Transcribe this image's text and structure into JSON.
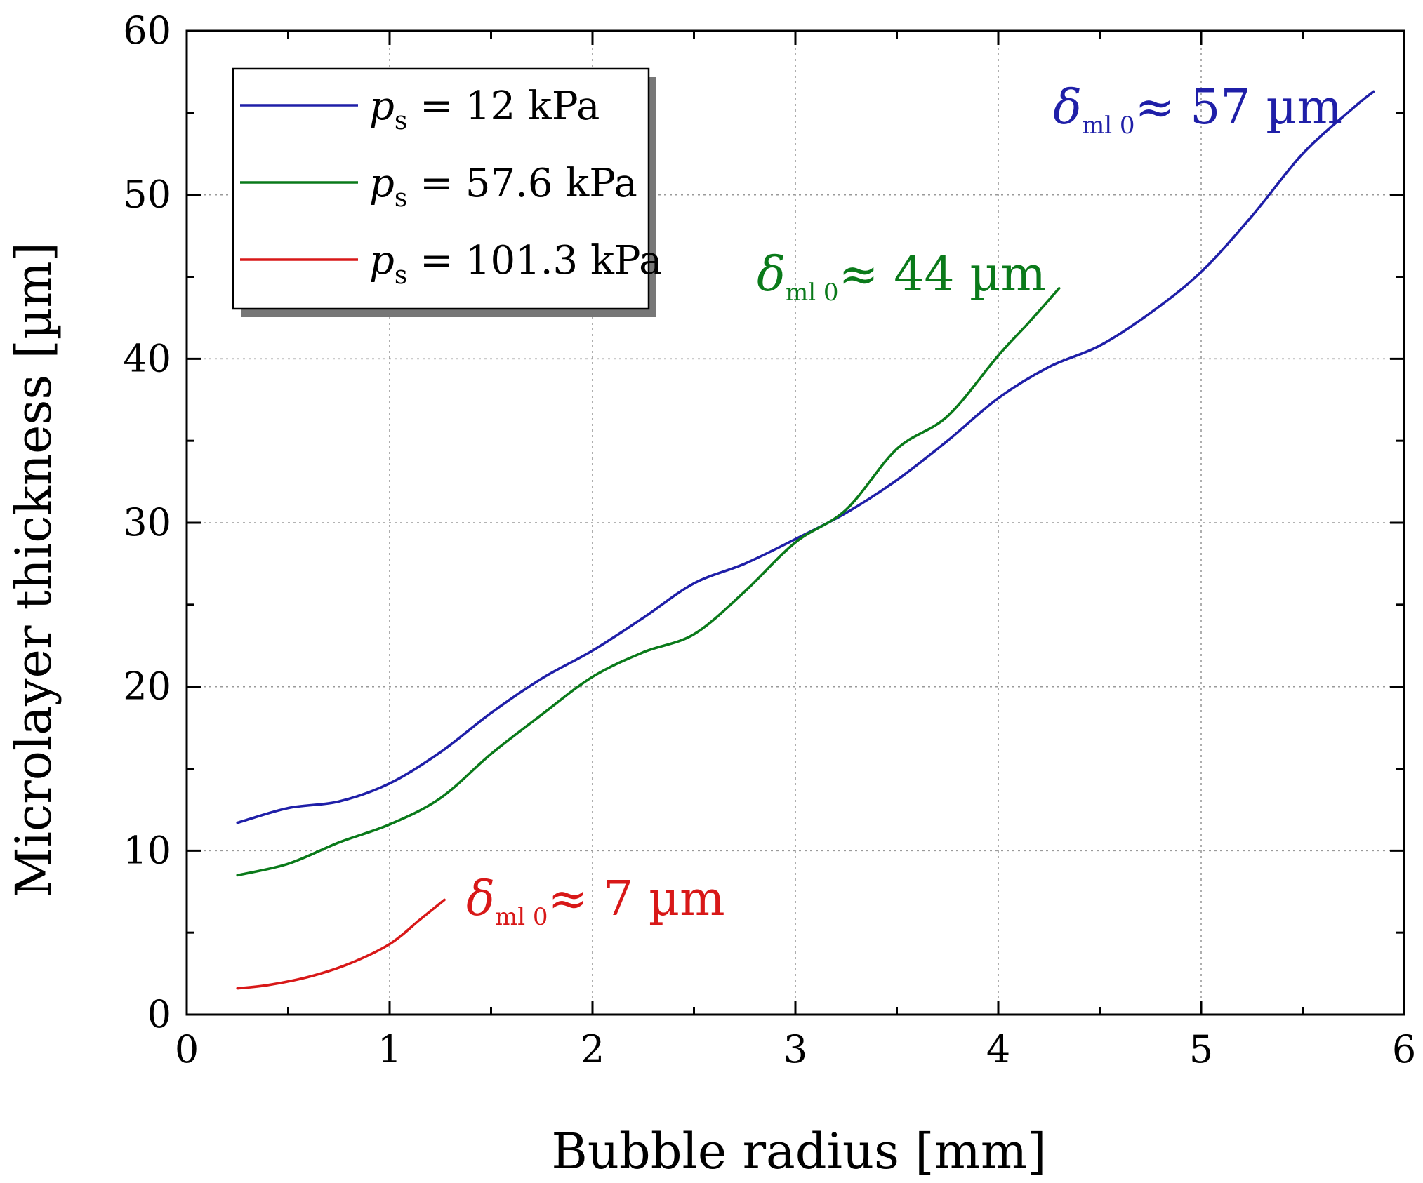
{
  "chart_data": {
    "type": "line",
    "title": "",
    "xlabel": "Bubble radius [mm]",
    "ylabel": "Microlayer thickness [µm]",
    "xlim": [
      0,
      6
    ],
    "ylim": [
      0,
      60
    ],
    "x_ticks": [
      0,
      1,
      2,
      3,
      4,
      5,
      6
    ],
    "y_ticks": [
      0,
      10,
      20,
      30,
      40,
      50,
      60
    ],
    "x_tick_labels": [
      "0",
      "1",
      "2",
      "3",
      "4",
      "5",
      "6"
    ],
    "y_tick_labels": [
      "0",
      "10",
      "20",
      "30",
      "40",
      "50",
      "60"
    ],
    "grid": true,
    "legend_position": "top-left",
    "series": [
      {
        "name": "12 kPa",
        "legend_symbol": "p",
        "legend_subscript": "s",
        "legend_eq": "=",
        "color": "#1f1fa8",
        "annotation": {
          "symbol": "δ",
          "subscript": "ml 0",
          "text": "≈ 57 µm"
        },
        "x": [
          0.25,
          0.5,
          0.75,
          1.0,
          1.25,
          1.5,
          1.75,
          2.0,
          2.25,
          2.5,
          2.75,
          3.0,
          3.25,
          3.5,
          3.75,
          4.0,
          4.25,
          4.5,
          4.75,
          5.0,
          5.25,
          5.5,
          5.75,
          5.85
        ],
        "y": [
          11.7,
          12.6,
          13.0,
          14.1,
          16.0,
          18.4,
          20.5,
          22.2,
          24.2,
          26.3,
          27.5,
          29.0,
          30.6,
          32.6,
          35.0,
          37.6,
          39.5,
          40.8,
          42.8,
          45.3,
          48.7,
          52.5,
          55.3,
          56.3
        ]
      },
      {
        "name": "57.6 kPa",
        "legend_symbol": "p",
        "legend_subscript": "s",
        "legend_eq": "=",
        "color": "#0a7a1a",
        "annotation": {
          "symbol": "δ",
          "subscript": "ml 0",
          "text": "≈ 44 µm"
        },
        "x": [
          0.25,
          0.5,
          0.75,
          1.0,
          1.25,
          1.5,
          1.75,
          2.0,
          2.25,
          2.5,
          2.75,
          3.0,
          3.25,
          3.5,
          3.75,
          4.0,
          4.15,
          4.3
        ],
        "y": [
          8.5,
          9.2,
          10.5,
          11.6,
          13.2,
          15.9,
          18.3,
          20.6,
          22.1,
          23.2,
          25.8,
          28.8,
          30.8,
          34.5,
          36.5,
          40.2,
          42.2,
          44.3
        ]
      },
      {
        "name": "101.3 kPa",
        "legend_symbol": "p",
        "legend_subscript": "s",
        "legend_eq": "=",
        "color": "#d81818",
        "annotation": {
          "symbol": "δ",
          "subscript": "ml 0",
          "text": "≈ 7 µm"
        },
        "x": [
          0.25,
          0.4,
          0.6,
          0.8,
          1.0,
          1.15,
          1.27
        ],
        "y": [
          1.6,
          1.8,
          2.3,
          3.1,
          4.3,
          5.8,
          7.0
        ]
      }
    ]
  }
}
